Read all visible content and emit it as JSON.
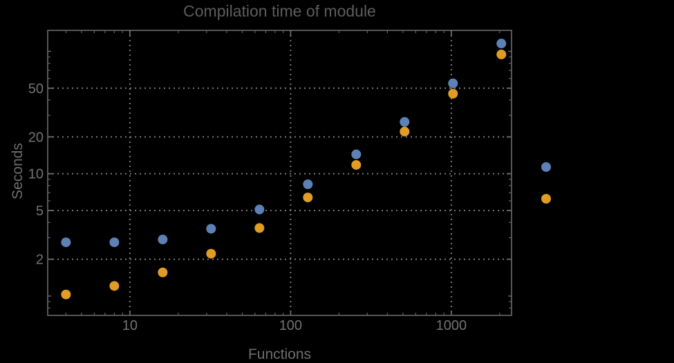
{
  "chart_data": {
    "type": "scatter",
    "title": "Compilation time of module",
    "xlabel": "Functions",
    "ylabel": "Seconds",
    "x_scale": "log",
    "y_scale": "log",
    "xlim": [
      3.08,
      2370
    ],
    "ylim": [
      0.695,
      148.5
    ],
    "x_tick_labels": [
      "10",
      "100",
      "1000"
    ],
    "x_tick_values": [
      10,
      100,
      1000
    ],
    "y_tick_labels": [
      "2",
      "5",
      "10",
      "20",
      "50"
    ],
    "y_tick_values": [
      2,
      5,
      10,
      20,
      50
    ],
    "grid": "dotted-at-major-ticks",
    "legend_position": "outside-right",
    "x": [
      4,
      8,
      16,
      32,
      64,
      128,
      256,
      512,
      1024,
      2048
    ],
    "series": [
      {
        "name": "series-1-blue",
        "color": "#5e81b5",
        "values": [
          2.75,
          2.75,
          2.9,
          3.55,
          5.1,
          8.2,
          14.4,
          26.5,
          54.8,
          116
        ]
      },
      {
        "name": "series-2-orange",
        "color": "#e19c24",
        "values": [
          1.03,
          1.21,
          1.56,
          2.22,
          3.6,
          6.4,
          11.8,
          22.1,
          45.1,
          94.4
        ]
      }
    ]
  },
  "colors": {
    "background": "#000000",
    "frame": "#6b6b6b",
    "grid": "#7a7a7a",
    "tick_label": "#737373",
    "title": "#5d5d5d",
    "axis_label": "#6e6e6e"
  }
}
